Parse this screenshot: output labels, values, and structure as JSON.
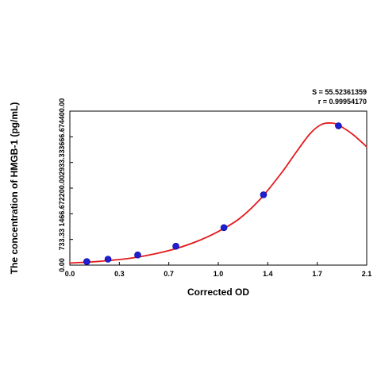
{
  "chart_data": {
    "type": "scatter",
    "xlabel": "Corrected OD",
    "ylabel": "The concentration of HMGB-1 (pg/mL)",
    "xlim": [
      0,
      2.1
    ],
    "ylim": [
      0,
      4400
    ],
    "x_ticks": [
      "0.0",
      "0.3",
      "0.7",
      "1.0",
      "1.4",
      "1.7",
      "2.1"
    ],
    "x_tick_values": [
      0,
      0.35,
      0.7,
      1.05,
      1.4,
      1.75,
      2.1
    ],
    "y_ticks": [
      "0.00",
      "733.33",
      "1466.67",
      "2200.00",
      "2933.33",
      "3666.67",
      "4400.00"
    ],
    "y_tick_values": [
      0,
      733.33,
      1466.67,
      2200,
      2933.33,
      3666.67,
      4400
    ],
    "points": [
      {
        "x": 0.12,
        "y": 100
      },
      {
        "x": 0.27,
        "y": 170
      },
      {
        "x": 0.48,
        "y": 290
      },
      {
        "x": 0.75,
        "y": 540
      },
      {
        "x": 1.09,
        "y": 1070
      },
      {
        "x": 1.37,
        "y": 2010
      },
      {
        "x": 1.9,
        "y": 3980
      }
    ],
    "fit_curve": [
      [
        0.0,
        60
      ],
      [
        0.15,
        90
      ],
      [
        0.3,
        140
      ],
      [
        0.45,
        210
      ],
      [
        0.6,
        320
      ],
      [
        0.75,
        470
      ],
      [
        0.9,
        680
      ],
      [
        1.05,
        960
      ],
      [
        1.2,
        1330
      ],
      [
        1.35,
        1900
      ],
      [
        1.5,
        2650
      ],
      [
        1.6,
        3220
      ],
      [
        1.7,
        3760
      ],
      [
        1.78,
        4020
      ],
      [
        1.85,
        4060
      ],
      [
        1.9,
        4000
      ],
      [
        2.0,
        3740
      ],
      [
        2.1,
        3380
      ]
    ],
    "grid": false,
    "colors": {
      "curve": "#e41a1c",
      "point": "#1f1fd0"
    },
    "stats": {
      "s": "S = 55.52361359",
      "r": "r = 0.99954170"
    }
  }
}
